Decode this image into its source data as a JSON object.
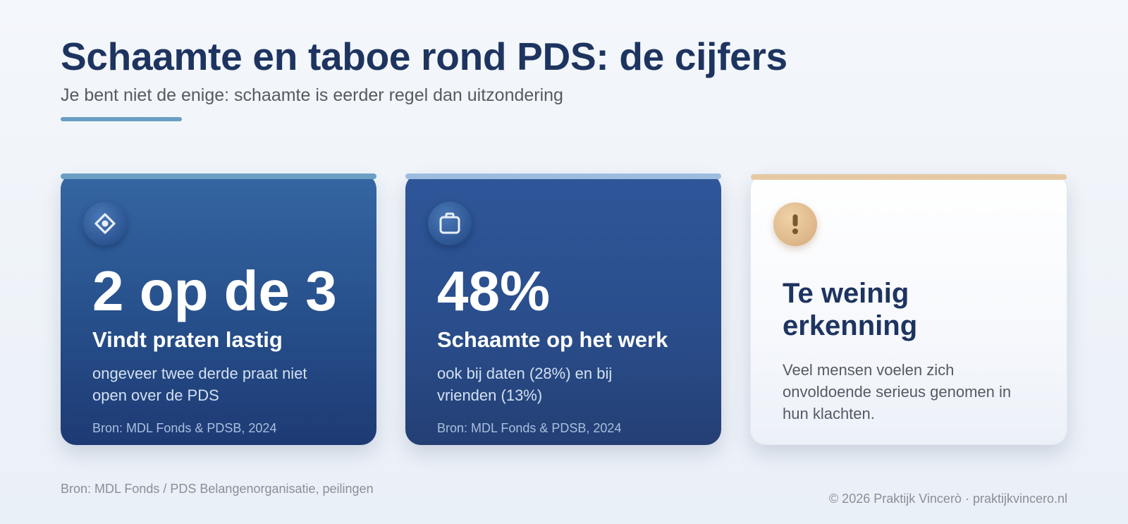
{
  "header": {
    "title": "Schaamte en taboe rond PDS: de cijfers",
    "subtitle": "Je bent niet de enige: schaamte is eerder regel dan uitzondering"
  },
  "cards": [
    {
      "icon": "eye-icon",
      "stat": "2 op de 3",
      "label": "Vindt praten lastig",
      "desc": "ongeveer twee derde praat niet open over de PDS",
      "source": "Bron: MDL Fonds & PDSB, 2024"
    },
    {
      "icon": "bag-icon",
      "stat": "48%",
      "label": "Schaamte op het werk",
      "desc": "ook bij daten (28%) en bij vrienden (13%)",
      "source": "Bron: MDL Fonds & PDSB, 2024"
    },
    {
      "icon": "exclamation-icon",
      "title": "Te weinig erkenning",
      "desc": "Veel mensen voelen zich onvoldoende serieus genomen in hun klachten."
    }
  ],
  "footer": {
    "source": "Bron: MDL Fonds / PDS Belangenorganisatie, peilingen",
    "copyright": "© 2026 Praktijk Vincerò · praktijkvincero.nl"
  },
  "colors": {
    "primary": "#1e3460",
    "accent_blue": "#6a9fc4",
    "accent_light_blue": "#9dbde0",
    "accent_gold": "#e6c9a3"
  }
}
